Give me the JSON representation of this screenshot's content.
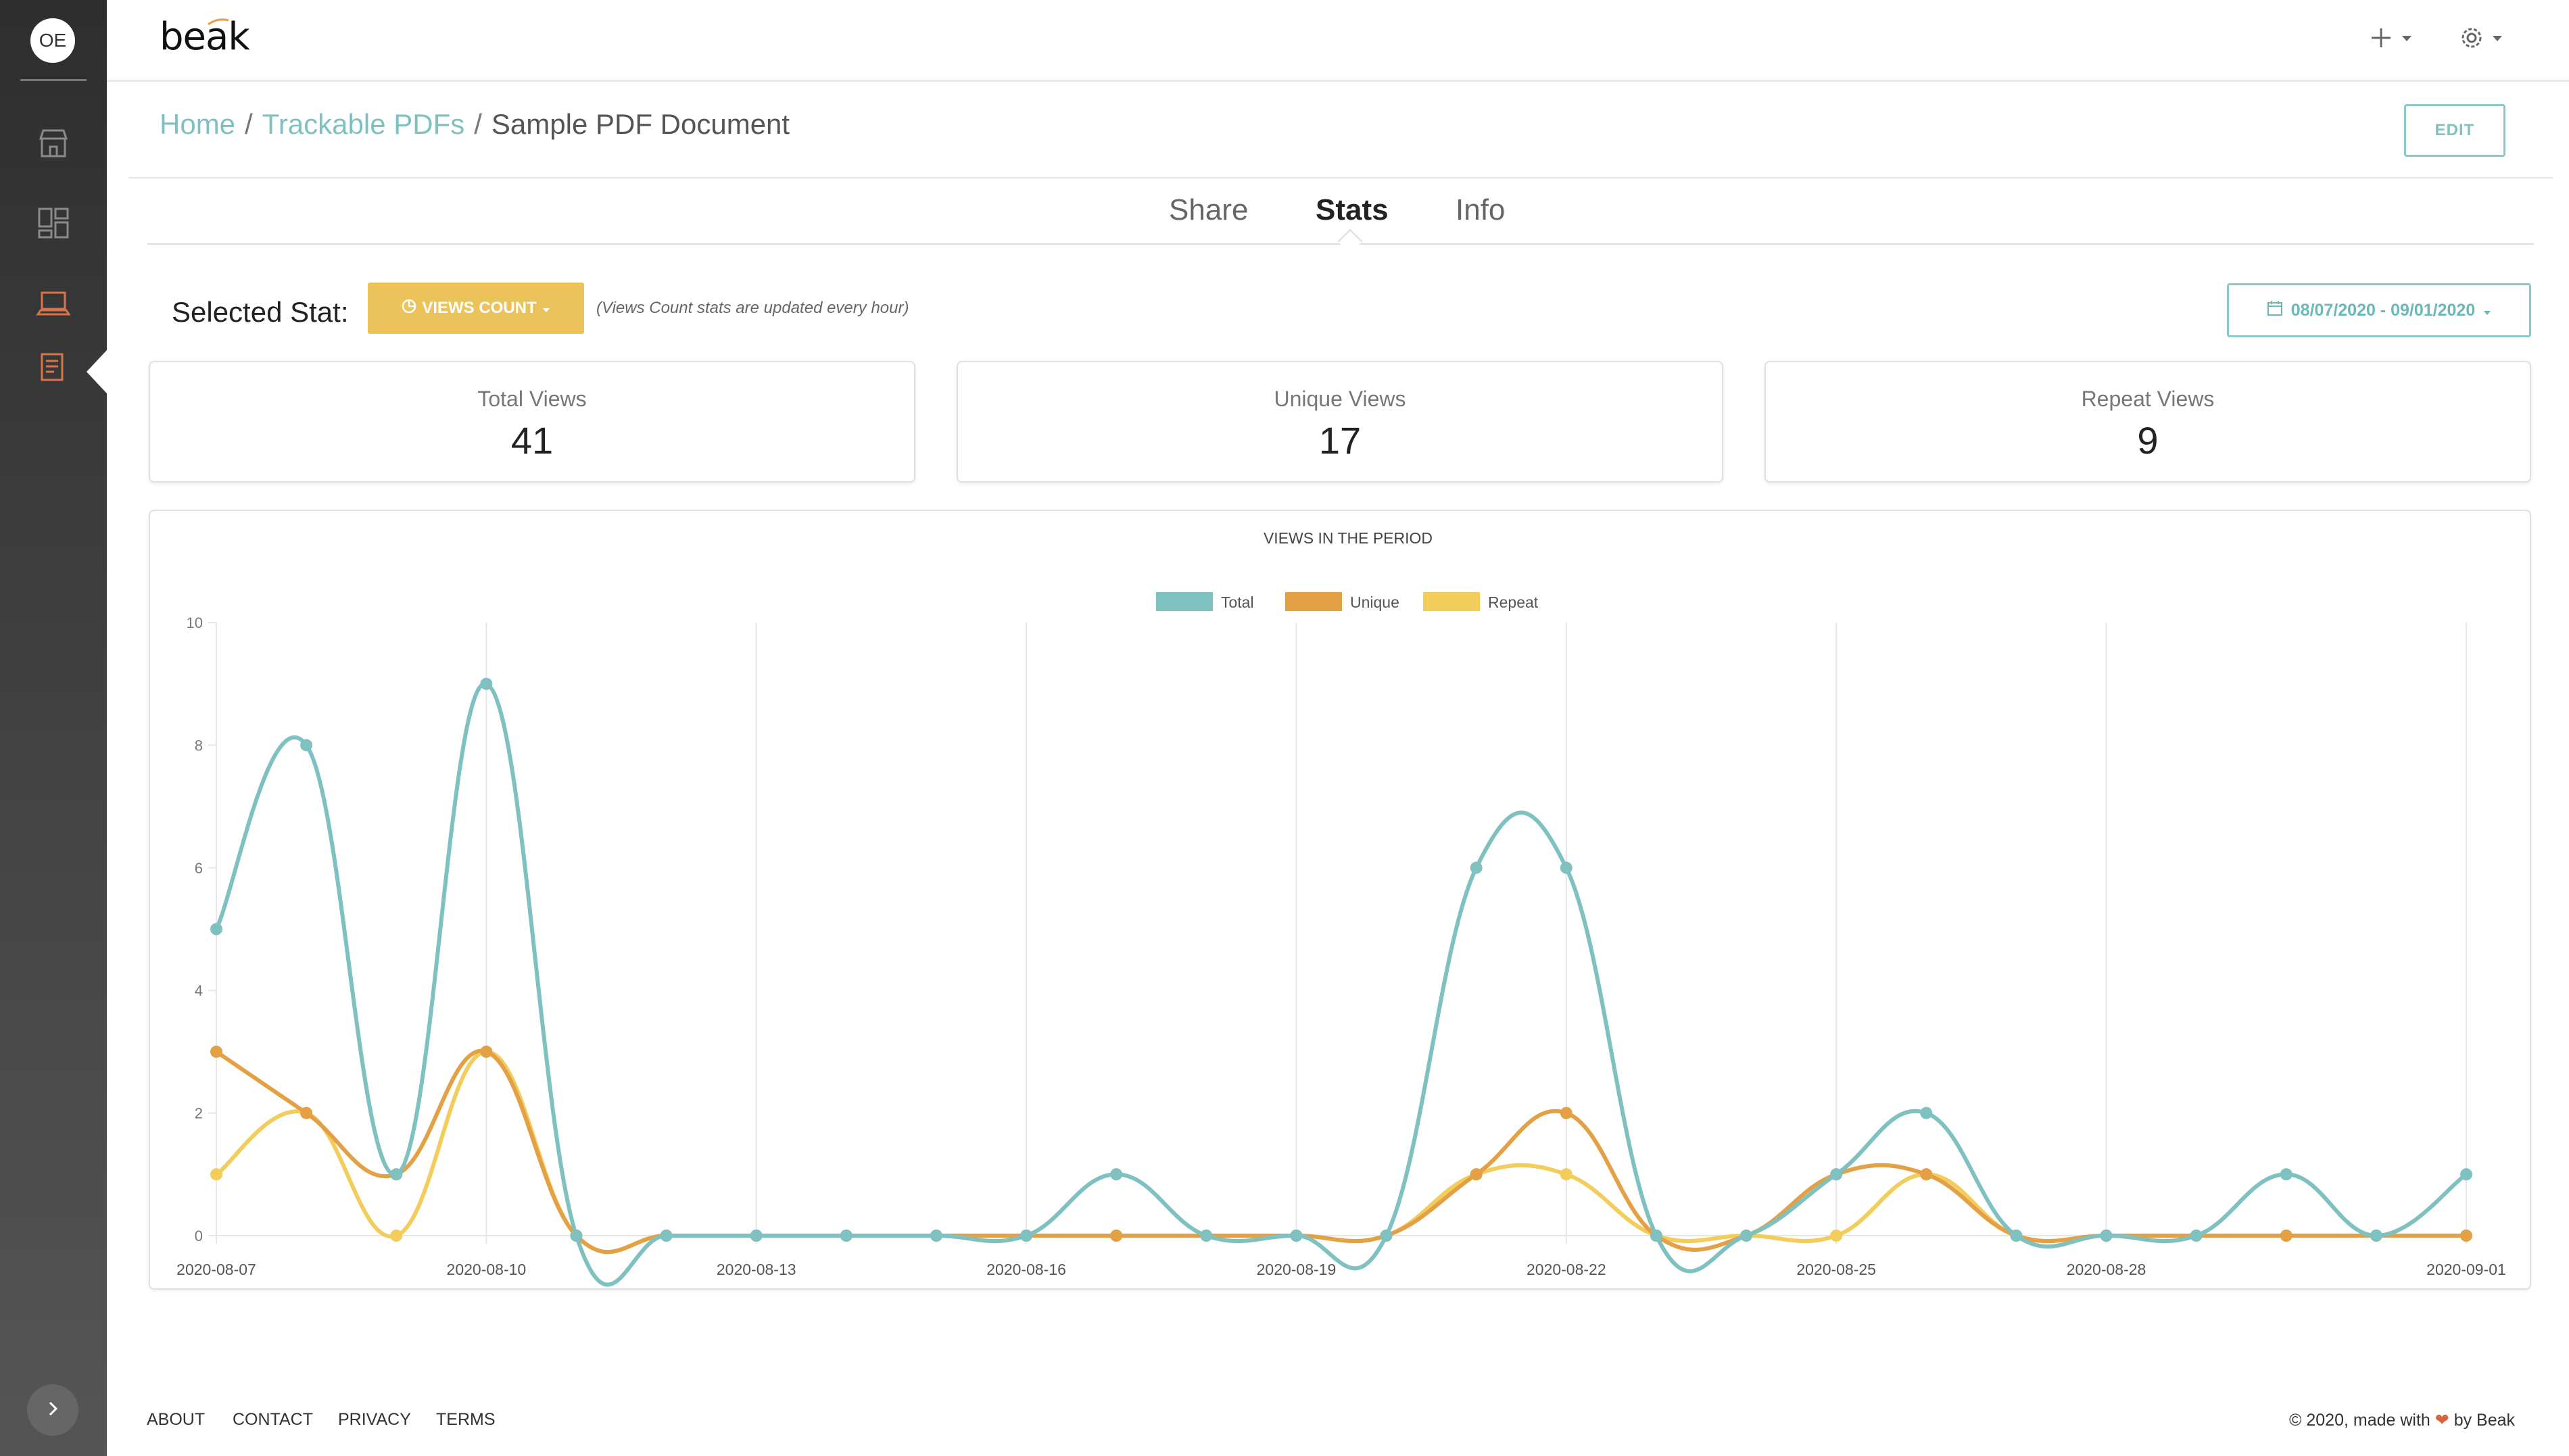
{
  "sidebar": {
    "avatar_initials": "OE",
    "items": [
      {
        "icon": "store-icon"
      },
      {
        "icon": "dashboard-icon"
      },
      {
        "icon": "laptop-icon"
      },
      {
        "icon": "document-list-icon"
      }
    ],
    "active_color": "#d9734b",
    "expand_icon": "chevron-right-icon"
  },
  "header": {
    "logo": "beak",
    "add_icon": "plus-icon",
    "settings_icon": "gear-icon"
  },
  "breadcrumb": {
    "home": "Home",
    "section": "Trackable PDFs",
    "current": "Sample PDF Document",
    "separator": "/"
  },
  "actions": {
    "edit_label": "EDIT"
  },
  "tabs": [
    {
      "label": "Share",
      "active": false
    },
    {
      "label": "Stats",
      "active": true
    },
    {
      "label": "Info",
      "active": false
    }
  ],
  "stat_selector": {
    "label": "Selected Stat:",
    "button_label": "VIEWS COUNT",
    "note": "(Views Count stats are updated every hour)",
    "date_range": "08/07/2020 - 09/01/2020"
  },
  "cards": [
    {
      "title": "Total Views",
      "value": "41"
    },
    {
      "title": "Unique Views",
      "value": "17"
    },
    {
      "title": "Repeat Views",
      "value": "9"
    }
  ],
  "chart_data": {
    "type": "line",
    "title": "VIEWS IN THE PERIOD",
    "legend_position": "top-center",
    "ylim": [
      0,
      10
    ],
    "y_ticks": [
      0,
      2,
      4,
      6,
      8,
      10
    ],
    "x": [
      "2020-08-07",
      "2020-08-08",
      "2020-08-09",
      "2020-08-10",
      "2020-08-11",
      "2020-08-12",
      "2020-08-13",
      "2020-08-14",
      "2020-08-15",
      "2020-08-16",
      "2020-08-17",
      "2020-08-18",
      "2020-08-19",
      "2020-08-20",
      "2020-08-21",
      "2020-08-22",
      "2020-08-23",
      "2020-08-24",
      "2020-08-25",
      "2020-08-26",
      "2020-08-27",
      "2020-08-28",
      "2020-08-29",
      "2020-08-30",
      "2020-08-31",
      "2020-09-01"
    ],
    "x_tick_labels": [
      "2020-08-07",
      "2020-08-10",
      "2020-08-13",
      "2020-08-16",
      "2020-08-19",
      "2020-08-22",
      "2020-08-25",
      "2020-08-28",
      "2020-09-01"
    ],
    "grid": true,
    "series": [
      {
        "name": "Total",
        "color": "#7fc1c1",
        "values": [
          5,
          8,
          1,
          9,
          0,
          0,
          0,
          0,
          0,
          0,
          1,
          0,
          0,
          0,
          6,
          6,
          0,
          0,
          1,
          2,
          0,
          0,
          0,
          1,
          0,
          1
        ]
      },
      {
        "name": "Unique",
        "color": "#e3a045",
        "values": [
          3,
          2,
          1,
          3,
          0,
          0,
          0,
          0,
          0,
          0,
          0,
          0,
          0,
          0,
          1,
          2,
          0,
          0,
          1,
          1,
          0,
          0,
          0,
          0,
          0,
          0
        ]
      },
      {
        "name": "Repeat",
        "color": "#f2cd5c",
        "values": [
          1,
          2,
          0,
          3,
          0,
          0,
          0,
          0,
          0,
          0,
          0,
          0,
          0,
          0,
          1,
          1,
          0,
          0,
          0,
          1,
          0,
          0,
          0,
          0,
          0,
          0
        ]
      }
    ]
  },
  "footer": {
    "links": [
      "ABOUT",
      "CONTACT",
      "PRIVACY",
      "TERMS"
    ],
    "copyright_prefix": "© 2020, made with",
    "copyright_suffix": "by Beak"
  }
}
